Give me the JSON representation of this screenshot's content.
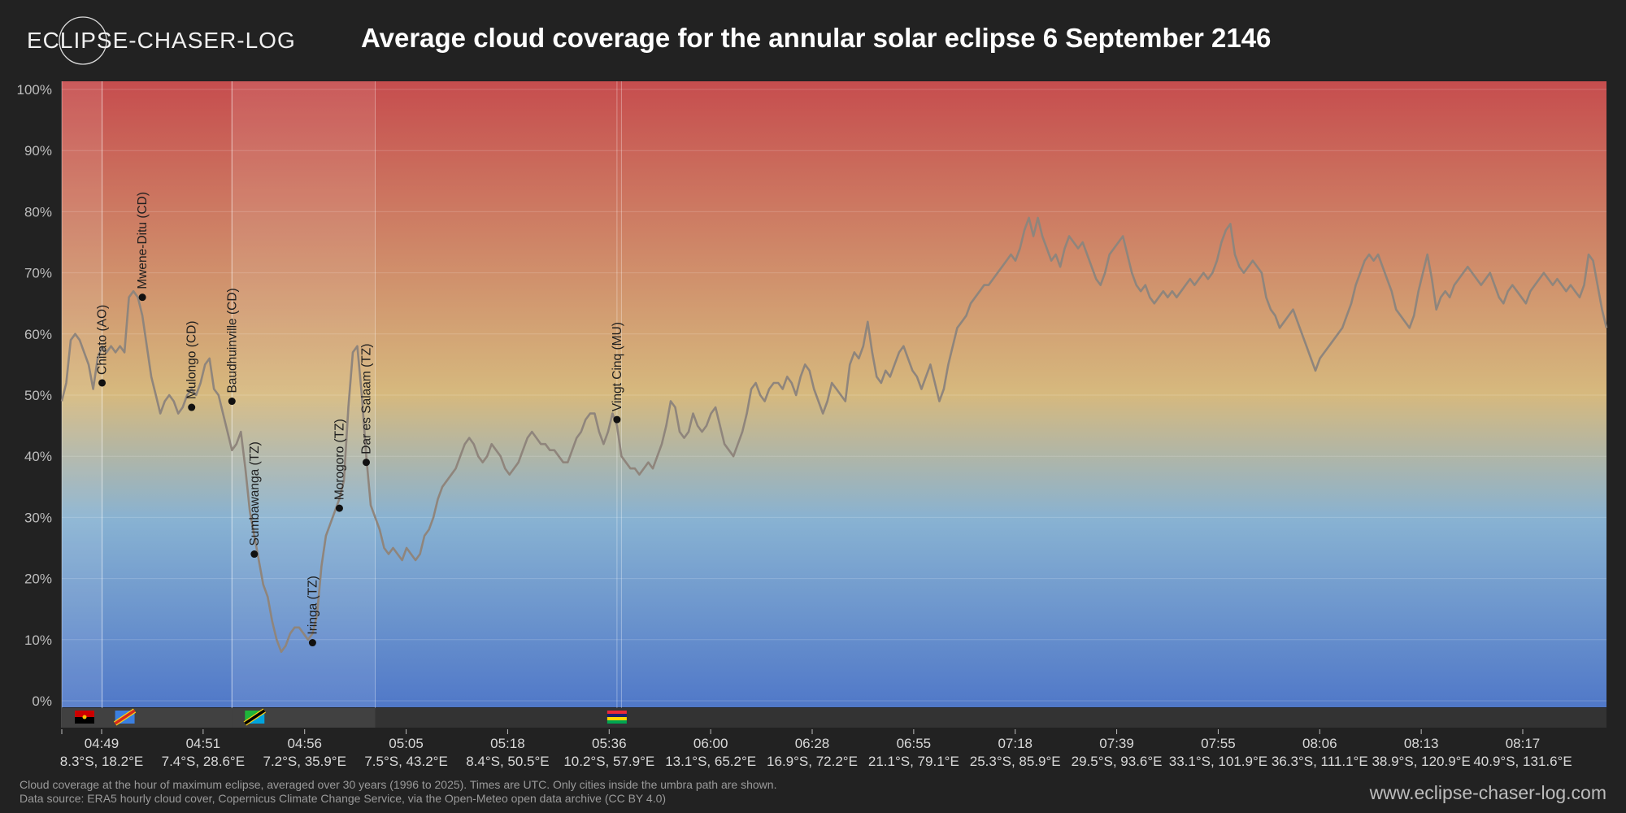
{
  "brand": {
    "name": "ECLIPSE-CHASER-LOG",
    "website": "www.eclipse-chaser-log.com"
  },
  "footnote": {
    "line1": "Cloud coverage at the hour of maximum eclipse, averaged over 30 years (1996 to 2025). Times are UTC. Only cities inside the umbra path are shown.",
    "line2": "Data source: ERA5 hourly cloud cover, Copernicus Climate Change Service, via the Open-Meteo open data archive (CC BY 4.0)"
  },
  "colors": {
    "background": "#222222",
    "line": "#8f857c",
    "grid": "#ffffff",
    "marker": "#111111",
    "country_band": "#333333"
  },
  "chart_data": {
    "type": "line",
    "title": "Average cloud coverage for the annular solar eclipse 6 September 2146",
    "ylabel": "",
    "xlabel": "",
    "ylim": [
      0,
      100
    ],
    "y_unit": "%",
    "y_ticks": [
      0,
      10,
      20,
      30,
      40,
      50,
      60,
      70,
      80,
      90,
      100
    ],
    "grid": true,
    "background_gradient": [
      {
        "stop": 0,
        "color": "#c64d4e"
      },
      {
        "stop": 0.5,
        "color": "#d6b97e"
      },
      {
        "stop": 0.7,
        "color": "#88b2d2"
      },
      {
        "stop": 1,
        "color": "#5078c8"
      }
    ],
    "x_ticks": [
      {
        "time": "04:49",
        "coord": "8.3°S, 18.2°E"
      },
      {
        "time": "04:51",
        "coord": "7.4°S, 28.6°E"
      },
      {
        "time": "04:56",
        "coord": "7.2°S, 35.9°E"
      },
      {
        "time": "05:05",
        "coord": "7.5°S, 43.2°E"
      },
      {
        "time": "05:18",
        "coord": "8.4°S, 50.5°E"
      },
      {
        "time": "05:36",
        "coord": "10.2°S, 57.9°E"
      },
      {
        "time": "06:00",
        "coord": "13.1°S, 65.2°E"
      },
      {
        "time": "06:28",
        "coord": "16.9°S, 72.2°E"
      },
      {
        "time": "06:55",
        "coord": "21.1°S, 79.1°E"
      },
      {
        "time": "07:18",
        "coord": "25.3°S, 85.9°E"
      },
      {
        "time": "07:39",
        "coord": "29.5°S, 93.6°E"
      },
      {
        "time": "07:55",
        "coord": "33.1°S, 101.9°E"
      },
      {
        "time": "08:06",
        "coord": "36.3°S, 111.1°E"
      },
      {
        "time": "08:13",
        "coord": "38.9°S, 120.9°E"
      },
      {
        "time": "08:17",
        "coord": "40.9°S, 131.6°E"
      }
    ],
    "series_points": [
      [
        0,
        49
      ],
      [
        1,
        52
      ],
      [
        2,
        59
      ],
      [
        3,
        60
      ],
      [
        4,
        59
      ],
      [
        5,
        57
      ],
      [
        6,
        55
      ],
      [
        7,
        51
      ],
      [
        8,
        56
      ],
      [
        9,
        58
      ],
      [
        10,
        57
      ],
      [
        11,
        58
      ],
      [
        12,
        57
      ],
      [
        13,
        58
      ],
      [
        14,
        57
      ],
      [
        15,
        66
      ],
      [
        16,
        67
      ],
      [
        17,
        66
      ],
      [
        18,
        63
      ],
      [
        19,
        58
      ],
      [
        20,
        53
      ],
      [
        21,
        50
      ],
      [
        22,
        47
      ],
      [
        23,
        49
      ],
      [
        24,
        50
      ],
      [
        25,
        49
      ],
      [
        26,
        47
      ],
      [
        27,
        48
      ],
      [
        28,
        50
      ],
      [
        29,
        51
      ],
      [
        30,
        50
      ],
      [
        31,
        52
      ],
      [
        32,
        55
      ],
      [
        33,
        56
      ],
      [
        34,
        51
      ],
      [
        35,
        50
      ],
      [
        36,
        47
      ],
      [
        37,
        44
      ],
      [
        38,
        41
      ],
      [
        39,
        42
      ],
      [
        40,
        44
      ],
      [
        41,
        38
      ],
      [
        42,
        31
      ],
      [
        43,
        27
      ],
      [
        44,
        23
      ],
      [
        45,
        19
      ],
      [
        46,
        17
      ],
      [
        47,
        13
      ],
      [
        48,
        10
      ],
      [
        49,
        8
      ],
      [
        50,
        9
      ],
      [
        51,
        11
      ],
      [
        52,
        12
      ],
      [
        53,
        12
      ],
      [
        54,
        11
      ],
      [
        55,
        10
      ],
      [
        56,
        11
      ],
      [
        57,
        14
      ],
      [
        58,
        22
      ],
      [
        59,
        27
      ],
      [
        60,
        29
      ],
      [
        61,
        31
      ],
      [
        62,
        33
      ],
      [
        63,
        36
      ],
      [
        64,
        48
      ],
      [
        65,
        57
      ],
      [
        66,
        58
      ],
      [
        67,
        50
      ],
      [
        68,
        40
      ],
      [
        69,
        32
      ],
      [
        70,
        30
      ],
      [
        71,
        28
      ],
      [
        72,
        25
      ],
      [
        73,
        24
      ],
      [
        74,
        25
      ],
      [
        75,
        24
      ],
      [
        76,
        23
      ],
      [
        77,
        25
      ],
      [
        78,
        24
      ],
      [
        79,
        23
      ],
      [
        80,
        24
      ],
      [
        81,
        27
      ],
      [
        82,
        28
      ],
      [
        83,
        30
      ],
      [
        84,
        33
      ],
      [
        85,
        35
      ],
      [
        86,
        36
      ],
      [
        87,
        37
      ],
      [
        88,
        38
      ],
      [
        89,
        40
      ],
      [
        90,
        42
      ],
      [
        91,
        43
      ],
      [
        92,
        42
      ],
      [
        93,
        40
      ],
      [
        94,
        39
      ],
      [
        95,
        40
      ],
      [
        96,
        42
      ],
      [
        97,
        41
      ],
      [
        98,
        40
      ],
      [
        99,
        38
      ],
      [
        100,
        37
      ],
      [
        101,
        38
      ],
      [
        102,
        39
      ],
      [
        103,
        41
      ],
      [
        104,
        43
      ],
      [
        105,
        44
      ],
      [
        106,
        43
      ],
      [
        107,
        42
      ],
      [
        108,
        42
      ],
      [
        109,
        41
      ],
      [
        110,
        41
      ],
      [
        111,
        40
      ],
      [
        112,
        39
      ],
      [
        113,
        39
      ],
      [
        114,
        41
      ],
      [
        115,
        43
      ],
      [
        116,
        44
      ],
      [
        117,
        46
      ],
      [
        118,
        47
      ],
      [
        119,
        47
      ],
      [
        120,
        44
      ],
      [
        121,
        42
      ],
      [
        122,
        44
      ],
      [
        123,
        47
      ],
      [
        124,
        45
      ],
      [
        125,
        40
      ],
      [
        126,
        39
      ],
      [
        127,
        38
      ],
      [
        128,
        38
      ],
      [
        129,
        37
      ],
      [
        130,
        38
      ],
      [
        131,
        39
      ],
      [
        132,
        38
      ],
      [
        133,
        40
      ],
      [
        134,
        42
      ],
      [
        135,
        45
      ],
      [
        136,
        49
      ],
      [
        137,
        48
      ],
      [
        138,
        44
      ],
      [
        139,
        43
      ],
      [
        140,
        44
      ],
      [
        141,
        47
      ],
      [
        142,
        45
      ],
      [
        143,
        44
      ],
      [
        144,
        45
      ],
      [
        145,
        47
      ],
      [
        146,
        48
      ],
      [
        147,
        45
      ],
      [
        148,
        42
      ],
      [
        149,
        41
      ],
      [
        150,
        40
      ],
      [
        151,
        42
      ],
      [
        152,
        44
      ],
      [
        153,
        47
      ],
      [
        154,
        51
      ],
      [
        155,
        52
      ],
      [
        156,
        50
      ],
      [
        157,
        49
      ],
      [
        158,
        51
      ],
      [
        159,
        52
      ],
      [
        160,
        52
      ],
      [
        161,
        51
      ],
      [
        162,
        53
      ],
      [
        163,
        52
      ],
      [
        164,
        50
      ],
      [
        165,
        53
      ],
      [
        166,
        55
      ],
      [
        167,
        54
      ],
      [
        168,
        51
      ],
      [
        169,
        49
      ],
      [
        170,
        47
      ],
      [
        171,
        49
      ],
      [
        172,
        52
      ],
      [
        173,
        51
      ],
      [
        174,
        50
      ],
      [
        175,
        49
      ],
      [
        176,
        55
      ],
      [
        177,
        57
      ],
      [
        178,
        56
      ],
      [
        179,
        58
      ],
      [
        180,
        62
      ],
      [
        181,
        57
      ],
      [
        182,
        53
      ],
      [
        183,
        52
      ],
      [
        184,
        54
      ],
      [
        185,
        53
      ],
      [
        186,
        55
      ],
      [
        187,
        57
      ],
      [
        188,
        58
      ],
      [
        189,
        56
      ],
      [
        190,
        54
      ],
      [
        191,
        53
      ],
      [
        192,
        51
      ],
      [
        193,
        53
      ],
      [
        194,
        55
      ],
      [
        195,
        52
      ],
      [
        196,
        49
      ],
      [
        197,
        51
      ],
      [
        198,
        55
      ],
      [
        199,
        58
      ],
      [
        200,
        61
      ],
      [
        201,
        62
      ],
      [
        202,
        63
      ],
      [
        203,
        65
      ],
      [
        204,
        66
      ],
      [
        205,
        67
      ],
      [
        206,
        68
      ],
      [
        207,
        68
      ],
      [
        208,
        69
      ],
      [
        209,
        70
      ],
      [
        210,
        71
      ],
      [
        211,
        72
      ],
      [
        212,
        73
      ],
      [
        213,
        72
      ],
      [
        214,
        74
      ],
      [
        215,
        77
      ],
      [
        216,
        79
      ],
      [
        217,
        76
      ],
      [
        218,
        79
      ],
      [
        219,
        76
      ],
      [
        220,
        74
      ],
      [
        221,
        72
      ],
      [
        222,
        73
      ],
      [
        223,
        71
      ],
      [
        224,
        74
      ],
      [
        225,
        76
      ],
      [
        226,
        75
      ],
      [
        227,
        74
      ],
      [
        228,
        75
      ],
      [
        229,
        73
      ],
      [
        230,
        71
      ],
      [
        231,
        69
      ],
      [
        232,
        68
      ],
      [
        233,
        70
      ],
      [
        234,
        73
      ],
      [
        235,
        74
      ],
      [
        236,
        75
      ],
      [
        237,
        76
      ],
      [
        238,
        73
      ],
      [
        239,
        70
      ],
      [
        240,
        68
      ],
      [
        241,
        67
      ],
      [
        242,
        68
      ],
      [
        243,
        66
      ],
      [
        244,
        65
      ],
      [
        245,
        66
      ],
      [
        246,
        67
      ],
      [
        247,
        66
      ],
      [
        248,
        67
      ],
      [
        249,
        66
      ],
      [
        250,
        67
      ],
      [
        251,
        68
      ],
      [
        252,
        69
      ],
      [
        253,
        68
      ],
      [
        254,
        69
      ],
      [
        255,
        70
      ],
      [
        256,
        69
      ],
      [
        257,
        70
      ],
      [
        258,
        72
      ],
      [
        259,
        75
      ],
      [
        260,
        77
      ],
      [
        261,
        78
      ],
      [
        262,
        73
      ],
      [
        263,
        71
      ],
      [
        264,
        70
      ],
      [
        265,
        71
      ],
      [
        266,
        72
      ],
      [
        267,
        71
      ],
      [
        268,
        70
      ],
      [
        269,
        66
      ],
      [
        270,
        64
      ],
      [
        271,
        63
      ],
      [
        272,
        61
      ],
      [
        273,
        62
      ],
      [
        274,
        63
      ],
      [
        275,
        64
      ],
      [
        276,
        62
      ],
      [
        277,
        60
      ],
      [
        278,
        58
      ],
      [
        279,
        56
      ],
      [
        280,
        54
      ],
      [
        281,
        56
      ],
      [
        282,
        57
      ],
      [
        283,
        58
      ],
      [
        284,
        59
      ],
      [
        285,
        60
      ],
      [
        286,
        61
      ],
      [
        287,
        63
      ],
      [
        288,
        65
      ],
      [
        289,
        68
      ],
      [
        290,
        70
      ],
      [
        291,
        72
      ],
      [
        292,
        73
      ],
      [
        293,
        72
      ],
      [
        294,
        73
      ],
      [
        295,
        71
      ],
      [
        296,
        69
      ],
      [
        297,
        67
      ],
      [
        298,
        64
      ],
      [
        299,
        63
      ],
      [
        300,
        62
      ],
      [
        301,
        61
      ],
      [
        302,
        63
      ],
      [
        303,
        67
      ],
      [
        304,
        70
      ],
      [
        305,
        73
      ],
      [
        306,
        69
      ],
      [
        307,
        64
      ],
      [
        308,
        66
      ],
      [
        309,
        67
      ],
      [
        310,
        66
      ],
      [
        311,
        68
      ],
      [
        312,
        69
      ],
      [
        313,
        70
      ],
      [
        314,
        71
      ],
      [
        315,
        70
      ],
      [
        316,
        69
      ],
      [
        317,
        68
      ],
      [
        318,
        69
      ],
      [
        319,
        70
      ],
      [
        320,
        68
      ],
      [
        321,
        66
      ],
      [
        322,
        65
      ],
      [
        323,
        67
      ],
      [
        324,
        68
      ],
      [
        325,
        67
      ],
      [
        326,
        66
      ],
      [
        327,
        65
      ],
      [
        328,
        67
      ],
      [
        329,
        68
      ],
      [
        330,
        69
      ],
      [
        331,
        70
      ],
      [
        332,
        69
      ],
      [
        333,
        68
      ],
      [
        334,
        69
      ],
      [
        335,
        68
      ],
      [
        336,
        67
      ],
      [
        337,
        68
      ],
      [
        338,
        67
      ],
      [
        339,
        66
      ],
      [
        340,
        68
      ],
      [
        341,
        73
      ],
      [
        342,
        72
      ],
      [
        343,
        68
      ],
      [
        344,
        64
      ],
      [
        345,
        61
      ]
    ],
    "point_count": 346,
    "cities": [
      {
        "name": "Chitato (AO)",
        "index": 9,
        "value": 52
      },
      {
        "name": "Mwene-Ditu (CD)",
        "index": 18,
        "value": 66
      },
      {
        "name": "Mulongo (CD)",
        "index": 29,
        "value": 48
      },
      {
        "name": "Baudhuinville (CD)",
        "index": 38,
        "value": 49
      },
      {
        "name": "Sumbawanga (TZ)",
        "index": 43,
        "value": 24
      },
      {
        "name": "Iringa (TZ)",
        "index": 56,
        "value": 9.5
      },
      {
        "name": "Morogoro (TZ)",
        "index": 62,
        "value": 31.5
      },
      {
        "name": "Dar es Salaam (TZ)",
        "index": 68,
        "value": 39
      },
      {
        "name": "Vingt Cinq (MU)",
        "index": 124,
        "value": 46
      }
    ],
    "country_segments": [
      {
        "country": "Angola",
        "flag": "angola-flag",
        "start_index": 0,
        "end_index": 9,
        "colors": [
          "#cc0000",
          "#000000"
        ]
      },
      {
        "country": "DR Congo",
        "flag": "drc-flag",
        "start_index": 9,
        "end_index": 38,
        "colors": [
          "#3b7fe0",
          "#d52b1e",
          "#f7d618"
        ]
      },
      {
        "country": "Tanzania",
        "flag": "tanzania-flag",
        "start_index": 38,
        "end_index": 70,
        "colors": [
          "#1eb53a",
          "#000000",
          "#fcd116",
          "#00a3dd"
        ]
      },
      {
        "country": "Mauritius",
        "flag": "mauritius-flag",
        "start_index": 124,
        "end_index": 125,
        "colors": [
          "#ea2839",
          "#1a206d",
          "#ffd500",
          "#00a551"
        ]
      }
    ]
  }
}
